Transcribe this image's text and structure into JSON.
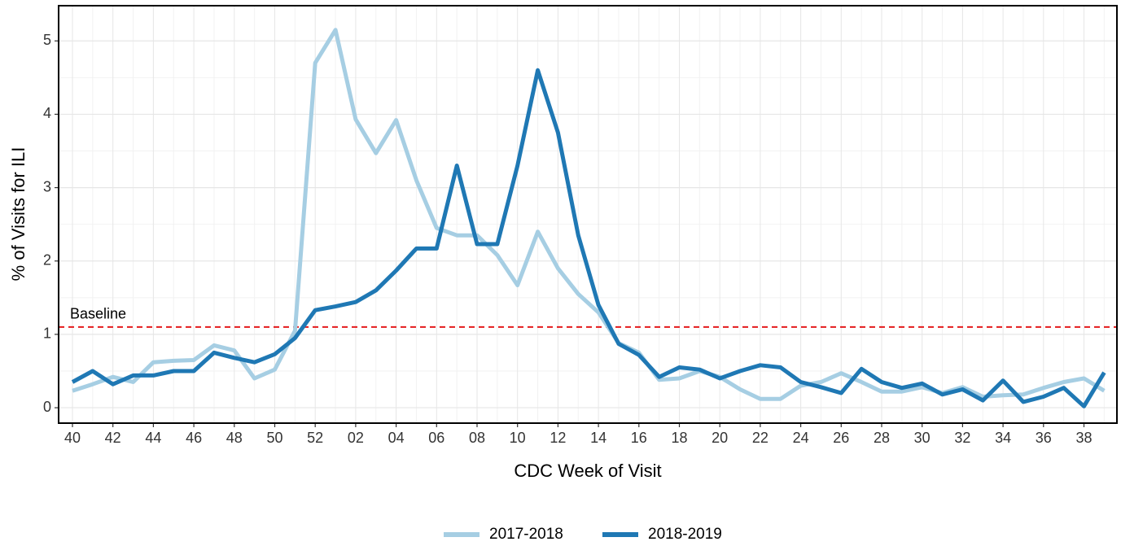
{
  "chart_data": {
    "type": "line",
    "x_label": "CDC Week of Visit",
    "y_label": "% of Visits for ILI",
    "categories": [
      "40",
      null,
      "42",
      null,
      "44",
      null,
      "46",
      null,
      "48",
      null,
      "50",
      null,
      "52",
      null,
      "02",
      null,
      "04",
      null,
      "06",
      null,
      "08",
      null,
      "10",
      null,
      "12",
      null,
      "14",
      null,
      "16",
      null,
      "18",
      null,
      "20",
      null,
      "22",
      null,
      "24",
      null,
      "26",
      null,
      "28",
      null,
      "30",
      null,
      "32",
      null,
      "34",
      null,
      "36",
      null,
      "38",
      null
    ],
    "series": [
      {
        "name": "2017-2018",
        "color": "#a6cee3",
        "values": [
          0.23,
          0.32,
          0.42,
          0.35,
          0.62,
          0.64,
          0.65,
          0.85,
          0.78,
          0.4,
          0.52,
          1.05,
          4.7,
          5.15,
          3.93,
          3.47,
          3.92,
          3.1,
          2.45,
          2.35,
          2.35,
          2.08,
          1.67,
          2.4,
          1.9,
          1.55,
          1.3,
          0.88,
          0.75,
          0.38,
          0.4,
          0.5,
          0.42,
          0.25,
          0.12,
          0.12,
          0.3,
          0.35,
          0.47,
          0.35,
          0.22,
          0.22,
          0.28,
          0.2,
          0.28,
          0.15,
          0.17,
          0.18,
          0.27,
          0.35,
          0.4,
          0.23
        ]
      },
      {
        "name": "2018-2019",
        "color": "#1f78b4",
        "values": [
          0.35,
          0.5,
          0.32,
          0.44,
          0.44,
          0.5,
          0.5,
          0.75,
          0.68,
          0.62,
          0.73,
          0.95,
          1.33,
          1.38,
          1.44,
          1.6,
          1.87,
          2.17,
          2.17,
          3.3,
          2.23,
          2.23,
          3.3,
          4.6,
          3.75,
          2.35,
          1.4,
          0.87,
          0.72,
          0.42,
          0.55,
          0.52,
          0.4,
          0.5,
          0.58,
          0.55,
          0.35,
          0.28,
          0.2,
          0.53,
          0.35,
          0.27,
          0.33,
          0.18,
          0.25,
          0.1,
          0.37,
          0.08,
          0.15,
          0.27,
          0.02,
          0.48
        ]
      }
    ],
    "baseline": {
      "value": 1.1,
      "label": "Baseline",
      "color": "#e41a1c"
    },
    "ylim": [
      -0.21,
      5.48
    ],
    "yticks": [
      0,
      1,
      2,
      3,
      4,
      5
    ],
    "grid": true,
    "legend": "bottom"
  }
}
